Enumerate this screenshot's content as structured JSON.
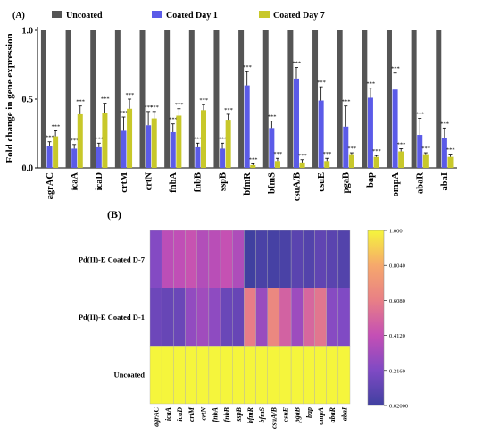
{
  "chart_data": [
    {
      "panel_label": "(A)",
      "type": "bar",
      "ylabel": "Fold change in gene expression",
      "ylim": [
        0,
        1.0
      ],
      "yticks": [
        "0.0",
        "0.5",
        "1.0"
      ],
      "categories": [
        "agrAC",
        "icaA",
        "icaD",
        "crtM",
        "crtN",
        "fnbA",
        "fnbB",
        "sspB",
        "bfmR",
        "bfmS",
        "csuA/B",
        "csuE",
        "pgaB",
        "bap",
        "ompA",
        "abaR",
        "abaI"
      ],
      "series": [
        {
          "name": "Uncoated",
          "color": "#555555",
          "values": [
            1,
            1,
            1,
            1,
            1,
            1,
            1,
            1,
            1,
            1,
            1,
            1,
            1,
            1,
            1,
            1,
            1
          ],
          "errors": [
            0,
            0,
            0,
            0,
            0,
            0,
            0,
            0,
            0,
            0,
            0,
            0,
            0,
            0,
            0,
            0,
            0
          ],
          "sig": [
            "",
            "",
            "",
            "",
            "",
            "",
            "",
            "",
            "",
            "",
            "",
            "",
            "",
            "",
            "",
            "",
            ""
          ]
        },
        {
          "name": "Coated Day 1",
          "color": "#5b5be8",
          "values": [
            0.16,
            0.14,
            0.15,
            0.27,
            0.31,
            0.26,
            0.15,
            0.14,
            0.6,
            0.29,
            0.65,
            0.49,
            0.3,
            0.51,
            0.57,
            0.24,
            0.22
          ],
          "errors": [
            0.03,
            0.03,
            0.03,
            0.1,
            0.1,
            0.06,
            0.03,
            0.04,
            0.1,
            0.05,
            0.08,
            0.1,
            0.15,
            0.07,
            0.12,
            0.12,
            0.07
          ],
          "sig": [
            "***",
            "***",
            "***",
            "***",
            "***",
            "***",
            "***",
            "***",
            "***",
            "***",
            "***",
            "***",
            "***",
            "***",
            "***",
            "***",
            "***"
          ]
        },
        {
          "name": "Coated Day 7",
          "color": "#c8c82a",
          "values": [
            0.23,
            0.39,
            0.4,
            0.43,
            0.36,
            0.38,
            0.42,
            0.35,
            0.02,
            0.05,
            0.04,
            0.05,
            0.1,
            0.08,
            0.12,
            0.1,
            0.08
          ],
          "errors": [
            0.04,
            0.06,
            0.07,
            0.07,
            0.05,
            0.05,
            0.04,
            0.04,
            0.01,
            0.02,
            0.02,
            0.02,
            0.01,
            0.01,
            0.02,
            0.01,
            0.02
          ],
          "sig": [
            "***",
            "***",
            "***",
            "***",
            "***",
            "***",
            "***",
            "***",
            "***",
            "***",
            "***",
            "***",
            "***",
            "***",
            "***",
            "***",
            "***"
          ]
        }
      ]
    },
    {
      "panel_label": "(B)",
      "type": "heatmap",
      "rows": [
        "Pd(II)-E Coated D-7",
        "Pd(II)-E Coated D-1",
        "Uncoated"
      ],
      "columns": [
        "agrAC",
        "icaA",
        "icaD",
        "crtM",
        "crtN",
        "fnbA",
        "fnbB",
        "sspB",
        "bfmR",
        "bfmS",
        "csuA/B",
        "csuE",
        "pgaB",
        "bap",
        "ompA",
        "abaR",
        "abaI"
      ],
      "values": [
        [
          0.23,
          0.39,
          0.4,
          0.43,
          0.36,
          0.38,
          0.42,
          0.35,
          0.02,
          0.05,
          0.04,
          0.05,
          0.1,
          0.08,
          0.12,
          0.1,
          0.08
        ],
        [
          0.16,
          0.14,
          0.15,
          0.27,
          0.31,
          0.26,
          0.15,
          0.14,
          0.6,
          0.29,
          0.65,
          0.49,
          0.3,
          0.51,
          0.57,
          0.24,
          0.22
        ],
        [
          1,
          1,
          1,
          1,
          1,
          1,
          1,
          1,
          1,
          1,
          1,
          1,
          1,
          1,
          1,
          1,
          1
        ]
      ],
      "colorbar": {
        "min": 0.02,
        "max": 1.0,
        "tick_labels": [
          "1.000",
          "0.8040",
          "0.6080",
          "0.4120",
          "0.2160",
          "0.02000"
        ],
        "tick_values": [
          1.0,
          0.804,
          0.608,
          0.412,
          0.216,
          0.02
        ],
        "colors": [
          "#f5f53c",
          "#f6a86c",
          "#e87f86",
          "#c44fb5",
          "#7f4ac4",
          "#4040a0"
        ]
      }
    }
  ]
}
